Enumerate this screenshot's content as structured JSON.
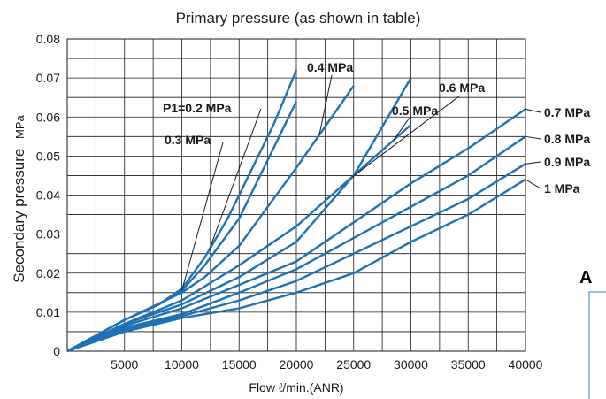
{
  "colors": {
    "series": "#1d71b4",
    "grid": "#1a1a1a",
    "accent": "#2a7fc0"
  },
  "side_fragment": {
    "letter": "A"
  },
  "chart_data": {
    "type": "line",
    "title": "Primary pressure (as shown in table)",
    "xlabel": "Flow ℓ/min.(ANR)",
    "ylabel": "Secondary pressure",
    "ylabel_unit": "MPa",
    "xlim": [
      0,
      40000
    ],
    "ylim": [
      0,
      0.08
    ],
    "x_ticks": [
      5000,
      10000,
      15000,
      20000,
      25000,
      30000,
      35000,
      40000
    ],
    "x_tick_labels": [
      "5000",
      "10000",
      "15000",
      "20000",
      "25000",
      "30000",
      "35000",
      "40000"
    ],
    "y_ticks": [
      0,
      0.01,
      0.02,
      0.03,
      0.04,
      0.05,
      0.06,
      0.07,
      0.08
    ],
    "y_tick_labels": [
      "0",
      "0.01",
      "0.02",
      "0.03",
      "0.04",
      "0.05",
      "0.06",
      "0.07",
      "0.08"
    ],
    "grid": true,
    "series": [
      {
        "name": "P1=0.2 MPa",
        "x": [
          0,
          5000,
          8000,
          10000,
          12000,
          14000,
          15000,
          18000,
          20000
        ],
        "y": [
          0,
          0.008,
          0.012,
          0.016,
          0.024,
          0.034,
          0.04,
          0.058,
          0.072
        ]
      },
      {
        "name": "0.3 MPa",
        "x": [
          0,
          5000,
          8000,
          10000,
          12000,
          15000,
          18000,
          20000
        ],
        "y": [
          0,
          0.008,
          0.012,
          0.0155,
          0.022,
          0.034,
          0.052,
          0.064
        ]
      },
      {
        "name": "0.4 MPa",
        "x": [
          0,
          5000,
          10000,
          12000,
          15000,
          20000,
          25000
        ],
        "y": [
          0,
          0.008,
          0.015,
          0.019,
          0.027,
          0.047,
          0.068
        ]
      },
      {
        "name": "0.5 MPa",
        "x": [
          0,
          5000,
          10000,
          15000,
          20000,
          25000,
          30000
        ],
        "y": [
          0,
          0.007,
          0.013,
          0.022,
          0.032,
          0.045,
          0.058
        ]
      },
      {
        "name": "0.6 MPa",
        "x": [
          0,
          5000,
          10000,
          15000,
          20000,
          25000,
          30000
        ],
        "y": [
          0,
          0.007,
          0.012,
          0.019,
          0.028,
          0.045,
          0.07
        ]
      },
      {
        "name": "0.7 MPa",
        "x": [
          0,
          5000,
          10000,
          15000,
          20000,
          25000,
          30000,
          35000,
          40000
        ],
        "y": [
          0,
          0.0065,
          0.011,
          0.017,
          0.023,
          0.033,
          0.043,
          0.052,
          0.062
        ]
      },
      {
        "name": "0.8 MPa",
        "x": [
          0,
          5000,
          10000,
          15000,
          20000,
          25000,
          30000,
          35000,
          40000
        ],
        "y": [
          0,
          0.006,
          0.0095,
          0.015,
          0.021,
          0.029,
          0.037,
          0.045,
          0.055
        ]
      },
      {
        "name": "0.9 MPa",
        "x": [
          0,
          5000,
          10000,
          15000,
          20000,
          25000,
          30000,
          35000,
          40000
        ],
        "y": [
          0,
          0.0055,
          0.009,
          0.013,
          0.018,
          0.025,
          0.032,
          0.039,
          0.048
        ]
      },
      {
        "name": "1 MPa",
        "x": [
          0,
          5000,
          10000,
          15000,
          20000,
          25000,
          30000,
          35000,
          40000
        ],
        "y": [
          0,
          0.005,
          0.0085,
          0.011,
          0.015,
          0.02,
          0.028,
          0.035,
          0.044
        ]
      }
    ],
    "annotations": [
      {
        "text": "P1=0.2 MPa",
        "series": 0
      },
      {
        "text": "0.3 MPa",
        "series": 1
      },
      {
        "text": "0.4 MPa",
        "series": 2
      },
      {
        "text": "0.5 MPa",
        "series": 3
      },
      {
        "text": "0.6 MPa",
        "series": 4
      },
      {
        "text": "0.7 MPa",
        "series": 5
      },
      {
        "text": "0.8 MPa",
        "series": 6
      },
      {
        "text": "0.9 MPa",
        "series": 7
      },
      {
        "text": "1 MPa",
        "series": 8
      }
    ]
  }
}
